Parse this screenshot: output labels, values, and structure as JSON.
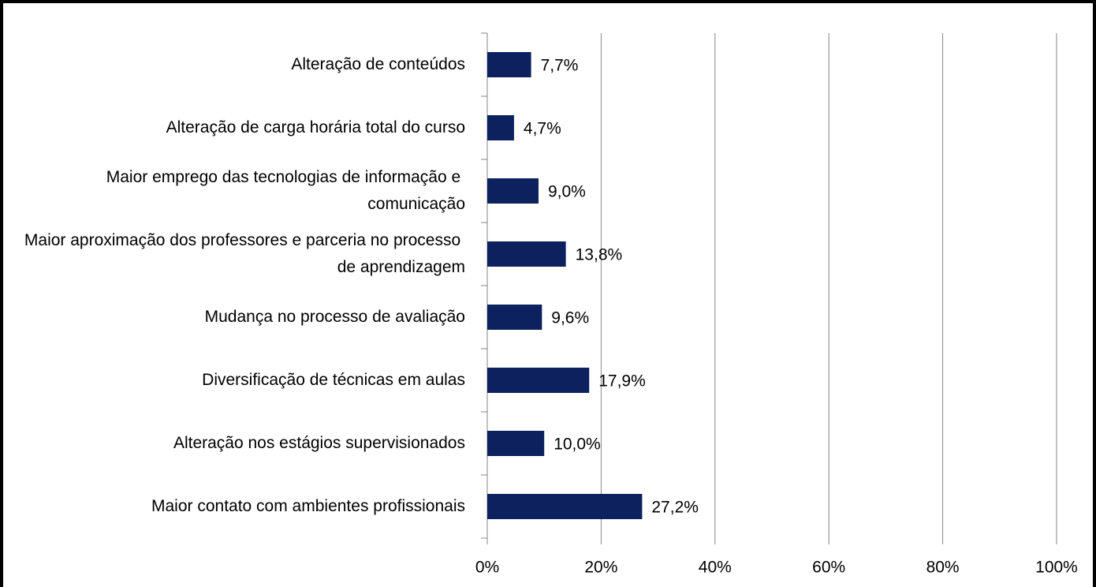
{
  "chart_data": {
    "type": "hbar",
    "categories": [
      "Alteração de conteúdos",
      "Alteração de carga horária total do curso",
      "Maior emprego das tecnologias de informação e comunicação",
      "Maior aproximação dos professores e parceria no processo de aprendizagem",
      "Mudança no processo de avaliação",
      "Diversificação de técnicas em aulas",
      "Alteração nos estágios supervisionados",
      "Maior contato com ambientes profissionais"
    ],
    "values": [
      7.7,
      4.7,
      9.0,
      13.8,
      9.6,
      17.9,
      10.0,
      27.2
    ],
    "value_labels": [
      "7,7%",
      "4,7%",
      "9,0%",
      "13,8%",
      "9,6%",
      "17,9%",
      "10,0%",
      "27,2%"
    ],
    "color": "#0c215e",
    "xlim": [
      0,
      100
    ],
    "xticks": [
      {
        "value": 0,
        "label": "0%"
      },
      {
        "value": 20,
        "label": "20%"
      },
      {
        "value": 40,
        "label": "40%"
      },
      {
        "value": 60,
        "label": "60%"
      },
      {
        "value": 80,
        "label": "80%"
      },
      {
        "value": 100,
        "label": "100%"
      }
    ],
    "grid": true
  }
}
